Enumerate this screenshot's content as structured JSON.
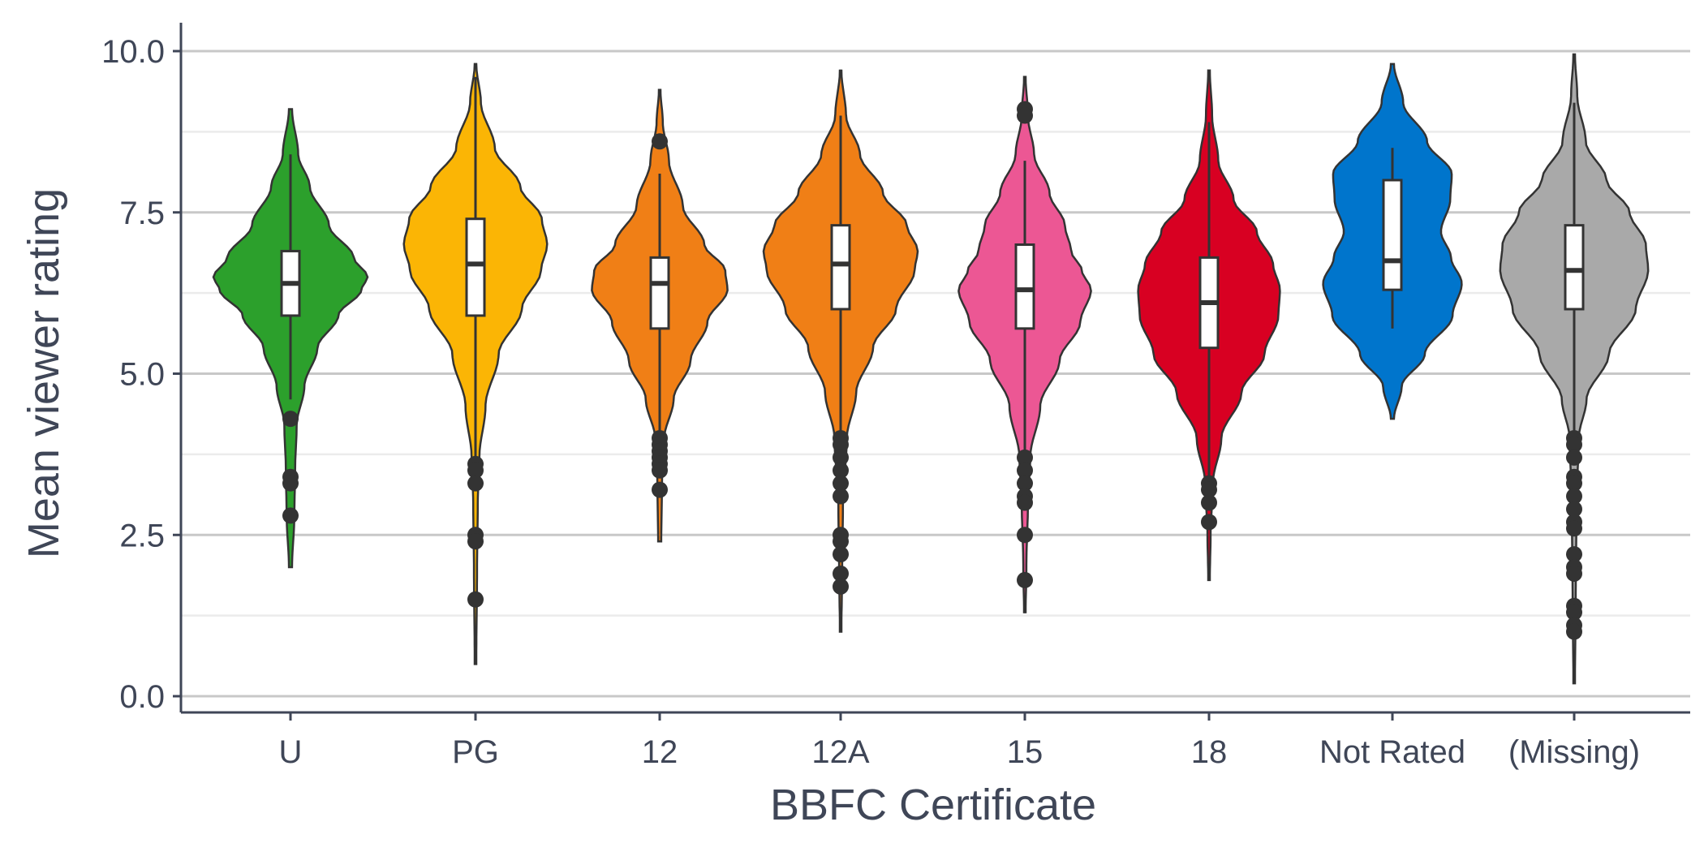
{
  "chart_data": {
    "type": "violin",
    "xlabel": "BBFC Certificate",
    "ylabel": "Mean viewer rating",
    "ylim": [
      0,
      10.2
    ],
    "yticks": [
      "0.0",
      "2.5",
      "5.0",
      "7.5",
      "10.0"
    ],
    "grid": true,
    "legend": "none",
    "categories": [
      "U",
      "PG",
      "12",
      "12A",
      "15",
      "18",
      "Not Rated",
      "(Missing)"
    ],
    "groups": [
      {
        "category": "U",
        "color": "#2ca02c",
        "min": 2.0,
        "max": 9.1,
        "q1": 5.9,
        "median": 6.4,
        "q3": 6.9,
        "whisker_low": 4.6,
        "whisker_high": 8.4,
        "outliers": [
          4.3,
          3.4,
          3.3,
          2.8
        ],
        "density": [
          [
            2.0,
            0.02
          ],
          [
            2.8,
            0.05
          ],
          [
            3.5,
            0.06
          ],
          [
            4.2,
            0.08
          ],
          [
            4.8,
            0.18
          ],
          [
            5.4,
            0.35
          ],
          [
            5.9,
            0.62
          ],
          [
            6.3,
            0.92
          ],
          [
            6.5,
            1.0
          ],
          [
            6.8,
            0.82
          ],
          [
            7.3,
            0.5
          ],
          [
            7.9,
            0.25
          ],
          [
            8.4,
            0.1
          ],
          [
            9.1,
            0.02
          ]
        ]
      },
      {
        "category": "PG",
        "color": "#fbb505",
        "min": 0.5,
        "max": 9.8,
        "q1": 5.9,
        "median": 6.7,
        "q3": 7.4,
        "whisker_low": 3.7,
        "whisker_high": 9.6,
        "outliers": [
          3.6,
          3.5,
          3.3,
          2.5,
          2.4,
          1.5
        ],
        "density": [
          [
            0.5,
            0.01
          ],
          [
            2.0,
            0.02
          ],
          [
            3.0,
            0.03
          ],
          [
            3.7,
            0.05
          ],
          [
            4.5,
            0.13
          ],
          [
            5.3,
            0.3
          ],
          [
            6.0,
            0.6
          ],
          [
            6.6,
            0.85
          ],
          [
            7.0,
            0.93
          ],
          [
            7.4,
            0.86
          ],
          [
            7.9,
            0.58
          ],
          [
            8.5,
            0.25
          ],
          [
            9.2,
            0.07
          ],
          [
            9.8,
            0.01
          ]
        ]
      },
      {
        "category": "12",
        "color": "#f07f16",
        "min": 2.4,
        "max": 9.4,
        "q1": 5.7,
        "median": 6.4,
        "q3": 6.8,
        "whisker_low": 4.1,
        "whisker_high": 8.1,
        "outliers": [
          4.0,
          3.9,
          3.8,
          3.7,
          3.6,
          3.5,
          3.2,
          8.6
        ],
        "density": [
          [
            2.4,
            0.02
          ],
          [
            3.3,
            0.03
          ],
          [
            4.0,
            0.06
          ],
          [
            4.6,
            0.18
          ],
          [
            5.2,
            0.4
          ],
          [
            5.8,
            0.62
          ],
          [
            6.3,
            0.88
          ],
          [
            6.6,
            0.85
          ],
          [
            7.0,
            0.58
          ],
          [
            7.6,
            0.3
          ],
          [
            8.3,
            0.12
          ],
          [
            8.9,
            0.04
          ],
          [
            9.4,
            0.01
          ]
        ]
      },
      {
        "category": "12A",
        "color": "#f07f16",
        "min": 1.0,
        "max": 9.7,
        "q1": 6.0,
        "median": 6.7,
        "q3": 7.3,
        "whisker_low": 4.1,
        "whisker_high": 9.0,
        "outliers": [
          4.0,
          3.9,
          3.7,
          3.5,
          3.3,
          3.1,
          2.5,
          2.4,
          2.2,
          1.9,
          1.7
        ],
        "density": [
          [
            1.0,
            0.01
          ],
          [
            2.0,
            0.02
          ],
          [
            3.0,
            0.03
          ],
          [
            4.0,
            0.08
          ],
          [
            4.7,
            0.2
          ],
          [
            5.4,
            0.42
          ],
          [
            6.0,
            0.72
          ],
          [
            6.6,
            0.96
          ],
          [
            6.9,
            1.0
          ],
          [
            7.3,
            0.86
          ],
          [
            7.8,
            0.55
          ],
          [
            8.4,
            0.25
          ],
          [
            9.0,
            0.07
          ],
          [
            9.7,
            0.01
          ]
        ]
      },
      {
        "category": "15",
        "color": "#ec5794",
        "min": 1.3,
        "max": 9.6,
        "q1": 5.7,
        "median": 6.3,
        "q3": 7.0,
        "whisker_low": 3.8,
        "whisker_high": 8.3,
        "outliers": [
          9.1,
          9.0,
          3.7,
          3.5,
          3.3,
          3.1,
          3.0,
          2.5,
          1.8
        ],
        "density": [
          [
            1.3,
            0.01
          ],
          [
            2.0,
            0.02
          ],
          [
            3.0,
            0.04
          ],
          [
            3.7,
            0.07
          ],
          [
            4.5,
            0.2
          ],
          [
            5.2,
            0.45
          ],
          [
            5.8,
            0.72
          ],
          [
            6.3,
            0.86
          ],
          [
            6.6,
            0.74
          ],
          [
            6.9,
            0.6
          ],
          [
            7.3,
            0.52
          ],
          [
            7.8,
            0.32
          ],
          [
            8.4,
            0.12
          ],
          [
            9.0,
            0.04
          ],
          [
            9.6,
            0.01
          ]
        ]
      },
      {
        "category": "18",
        "color": "#d80022",
        "min": 1.8,
        "max": 9.7,
        "q1": 5.4,
        "median": 6.1,
        "q3": 6.8,
        "whisker_low": 3.4,
        "whisker_high": 8.9,
        "outliers": [
          3.3,
          3.2,
          3.0,
          2.7
        ],
        "density": [
          [
            1.8,
            0.01
          ],
          [
            2.5,
            0.02
          ],
          [
            3.3,
            0.05
          ],
          [
            4.0,
            0.16
          ],
          [
            4.7,
            0.42
          ],
          [
            5.3,
            0.72
          ],
          [
            5.9,
            0.9
          ],
          [
            6.3,
            0.92
          ],
          [
            6.7,
            0.83
          ],
          [
            7.2,
            0.62
          ],
          [
            7.7,
            0.32
          ],
          [
            8.3,
            0.12
          ],
          [
            9.0,
            0.04
          ],
          [
            9.7,
            0.01
          ]
        ]
      },
      {
        "category": "Not Rated",
        "color": "#0075cc",
        "min": 4.3,
        "max": 9.8,
        "q1": 6.3,
        "median": 6.75,
        "q3": 8.0,
        "whisker_low": 5.7,
        "whisker_high": 8.5,
        "outliers": [],
        "density": [
          [
            4.3,
            0.02
          ],
          [
            4.8,
            0.12
          ],
          [
            5.3,
            0.42
          ],
          [
            5.9,
            0.78
          ],
          [
            6.4,
            0.9
          ],
          [
            6.8,
            0.76
          ],
          [
            7.2,
            0.63
          ],
          [
            7.7,
            0.75
          ],
          [
            8.1,
            0.77
          ],
          [
            8.6,
            0.45
          ],
          [
            9.2,
            0.14
          ],
          [
            9.8,
            0.02
          ]
        ]
      },
      {
        "category": "(Missing)",
        "color": "#a9a9a9",
        "min": 0.2,
        "max": 9.95,
        "q1": 6.0,
        "median": 6.6,
        "q3": 7.3,
        "whisker_low": 4.1,
        "whisker_high": 9.2,
        "outliers": [
          4.0,
          3.9,
          3.7,
          3.4,
          3.3,
          3.1,
          2.9,
          2.7,
          2.6,
          2.2,
          2.0,
          1.9,
          1.4,
          1.3,
          1.1,
          1.0
        ],
        "density": [
          [
            0.2,
            0.01
          ],
          [
            1.5,
            0.02
          ],
          [
            3.0,
            0.03
          ],
          [
            4.0,
            0.06
          ],
          [
            4.6,
            0.16
          ],
          [
            5.3,
            0.45
          ],
          [
            6.0,
            0.8
          ],
          [
            6.6,
            0.96
          ],
          [
            7.0,
            0.93
          ],
          [
            7.5,
            0.72
          ],
          [
            8.0,
            0.42
          ],
          [
            8.6,
            0.15
          ],
          [
            9.3,
            0.04
          ],
          [
            9.95,
            0.01
          ]
        ]
      }
    ]
  }
}
